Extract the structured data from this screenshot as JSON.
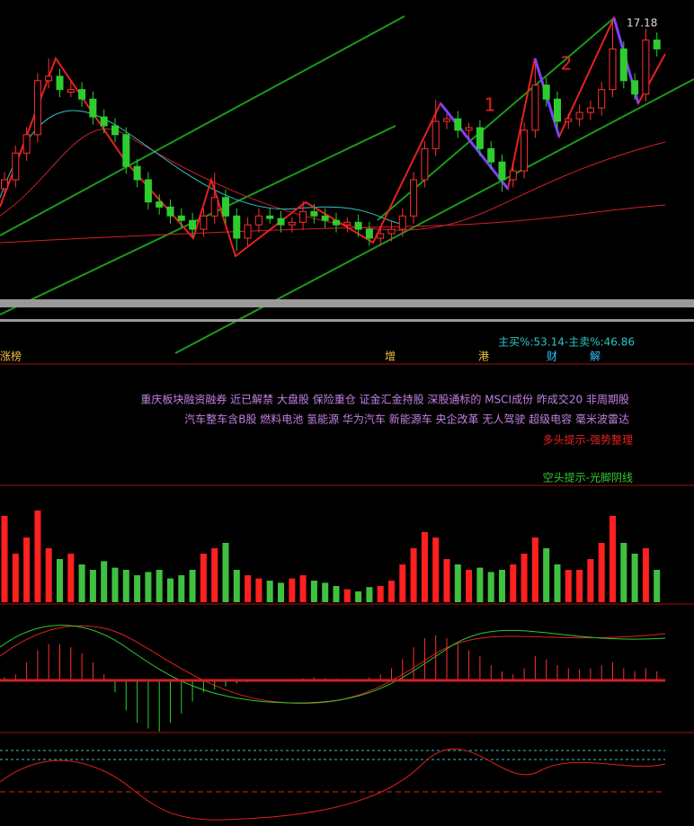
{
  "chart_data": {
    "type": "candlestick",
    "price": {
      "ylim": [
        12.8,
        17.4
      ],
      "ohlc": [
        [
          14.5,
          14.76,
          14.38,
          14.64
        ],
        [
          14.64,
          15.18,
          14.52,
          15.06
        ],
        [
          15.06,
          15.47,
          14.94,
          15.35
        ],
        [
          15.35,
          16.32,
          15.23,
          16.2
        ],
        [
          16.2,
          16.55,
          16.08,
          16.27
        ],
        [
          16.27,
          16.39,
          15.94,
          16.06
        ],
        [
          16.02,
          16.18,
          15.94,
          16.06
        ],
        [
          16.06,
          16.18,
          15.79,
          15.91
        ],
        [
          15.91,
          16.03,
          15.51,
          15.63
        ],
        [
          15.63,
          15.75,
          15.37,
          15.49
        ],
        [
          15.49,
          15.61,
          15.23,
          15.35
        ],
        [
          15.35,
          15.47,
          14.73,
          14.85
        ],
        [
          14.85,
          14.97,
          14.52,
          14.64
        ],
        [
          14.64,
          14.76,
          14.17,
          14.29
        ],
        [
          14.29,
          14.41,
          14.09,
          14.21
        ],
        [
          14.21,
          14.33,
          13.95,
          14.07
        ],
        [
          14.07,
          14.19,
          13.88,
          14.0
        ],
        [
          14.0,
          14.12,
          13.74,
          13.86
        ],
        [
          13.86,
          14.19,
          13.74,
          14.07
        ],
        [
          14.07,
          14.75,
          13.95,
          14.36
        ],
        [
          14.36,
          14.48,
          13.95,
          14.07
        ],
        [
          14.07,
          14.19,
          13.52,
          13.72
        ],
        [
          13.72,
          14.05,
          13.6,
          13.93
        ],
        [
          13.93,
          14.19,
          13.81,
          14.07
        ],
        [
          14.07,
          14.19,
          13.95,
          14.03
        ],
        [
          14.03,
          14.15,
          13.81,
          13.93
        ],
        [
          13.93,
          14.05,
          13.81,
          13.97
        ],
        [
          13.97,
          14.3,
          13.85,
          14.14
        ],
        [
          14.14,
          14.26,
          13.95,
          14.07
        ],
        [
          14.07,
          14.19,
          13.88,
          14.0
        ],
        [
          14.0,
          14.12,
          13.81,
          13.93
        ],
        [
          13.93,
          14.05,
          13.81,
          13.97
        ],
        [
          13.97,
          14.09,
          13.74,
          13.86
        ],
        [
          13.86,
          13.98,
          13.6,
          13.72
        ],
        [
          13.72,
          13.91,
          13.6,
          13.79
        ],
        [
          13.79,
          13.98,
          13.67,
          13.86
        ],
        [
          13.86,
          14.19,
          13.74,
          14.07
        ],
        [
          14.07,
          14.76,
          13.95,
          14.64
        ],
        [
          14.64,
          15.25,
          14.52,
          15.13
        ],
        [
          15.13,
          15.9,
          15.01,
          15.56
        ],
        [
          15.56,
          15.68,
          15.44,
          15.6
        ],
        [
          15.6,
          15.72,
          15.3,
          15.42
        ],
        [
          15.42,
          15.54,
          15.3,
          15.46
        ],
        [
          15.46,
          15.58,
          15.01,
          15.13
        ],
        [
          15.13,
          15.25,
          14.8,
          14.92
        ],
        [
          14.92,
          15.04,
          14.45,
          14.64
        ],
        [
          14.64,
          14.9,
          14.52,
          14.78
        ],
        [
          14.78,
          15.54,
          14.66,
          15.42
        ],
        [
          15.42,
          16.5,
          15.3,
          16.13
        ],
        [
          16.13,
          16.25,
          15.79,
          15.91
        ],
        [
          15.91,
          16.03,
          15.44,
          15.56
        ],
        [
          15.56,
          15.68,
          15.44,
          15.6
        ],
        [
          15.6,
          15.82,
          15.48,
          15.7
        ],
        [
          15.7,
          15.89,
          15.58,
          15.77
        ],
        [
          15.77,
          16.18,
          15.65,
          16.06
        ],
        [
          16.06,
          17.18,
          15.94,
          16.7
        ],
        [
          16.7,
          16.82,
          16.08,
          16.2
        ],
        [
          16.2,
          16.32,
          15.9,
          15.99
        ],
        [
          15.99,
          17.02,
          15.87,
          16.84
        ],
        [
          16.84,
          16.96,
          16.58,
          16.7
        ]
      ]
    },
    "volume": {
      "ylim": [
        0,
        100
      ],
      "values": [
        80,
        45,
        60,
        85,
        50,
        40,
        45,
        35,
        30,
        38,
        32,
        30,
        25,
        28,
        30,
        22,
        25,
        30,
        45,
        50,
        55,
        30,
        25,
        22,
        20,
        18,
        22,
        25,
        20,
        18,
        15,
        12,
        10,
        14,
        15,
        20,
        35,
        50,
        65,
        60,
        40,
        35,
        30,
        32,
        28,
        30,
        35,
        45,
        60,
        50,
        35,
        30,
        30,
        40,
        55,
        80,
        55,
        45,
        50,
        30
      ]
    },
    "macd": {
      "ylim": [
        -1,
        1
      ],
      "values": [
        0.05,
        0.1,
        0.3,
        0.5,
        0.6,
        0.6,
        0.55,
        0.45,
        0.3,
        0.1,
        -0.2,
        -0.5,
        -0.7,
        -0.8,
        -0.85,
        -0.7,
        -0.55,
        -0.35,
        -0.2,
        -0.15,
        -0.1,
        -0.05,
        -0.03,
        -0.02,
        0.02,
        -0.02,
        0.01,
        0.03,
        0.05,
        0.04,
        0.03,
        0.02,
        0.02,
        0.05,
        0.1,
        0.2,
        0.35,
        0.55,
        0.7,
        0.75,
        0.7,
        0.6,
        0.5,
        0.4,
        0.25,
        0.15,
        0.1,
        0.2,
        0.4,
        0.35,
        0.25,
        0.2,
        0.18,
        0.2,
        0.25,
        0.3,
        0.2,
        0.15,
        0.2,
        0.15
      ]
    },
    "annotations": {
      "high": "17.18",
      "wave1": "1",
      "wave2": "2"
    },
    "flow": "主买%:53.14-主卖%:46.86",
    "tags": [
      "涨榜",
      "增",
      "港",
      "财",
      "解"
    ],
    "concepts": [
      "重庆板块融资融券 近已解禁 大盘股 保险重仓 证金汇金持股 深股通标的 MSCI成份 昨成交20 非周期股",
      "汽车整车含B股 燃料电池 氢能源 华为汽车 新能源车 央企改革 无人驾驶 超级电容 毫米波雷达"
    ],
    "bull_hint": "多头提示-强势整理",
    "bear_hint": "空头提示-光脚阴线"
  }
}
